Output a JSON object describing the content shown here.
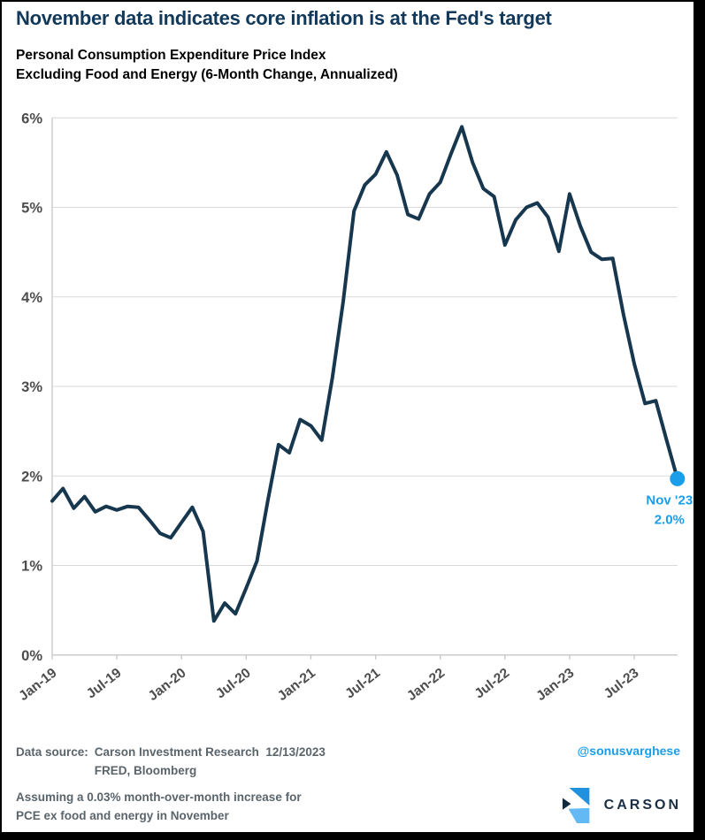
{
  "title": "November data indicates core inflation is at the Fed's target",
  "subtitle": {
    "line1": "Personal Consumption Expenditure Price Index",
    "line2": "Excluding Food and Energy (6-Month Change, Annualized)"
  },
  "chart_data": {
    "type": "line",
    "title": "Personal Consumption Expenditure Price Index Excluding Food and Energy (6-Month Change, Annualized)",
    "x": [
      "Jan-19",
      "Feb-19",
      "Mar-19",
      "Apr-19",
      "May-19",
      "Jun-19",
      "Jul-19",
      "Aug-19",
      "Sep-19",
      "Oct-19",
      "Nov-19",
      "Dec-19",
      "Jan-20",
      "Feb-20",
      "Mar-20",
      "Apr-20",
      "May-20",
      "Jun-20",
      "Jul-20",
      "Aug-20",
      "Sep-20",
      "Oct-20",
      "Nov-20",
      "Dec-20",
      "Jan-21",
      "Feb-21",
      "Mar-21",
      "Apr-21",
      "May-21",
      "Jun-21",
      "Jul-21",
      "Aug-21",
      "Sep-21",
      "Oct-21",
      "Nov-21",
      "Dec-21",
      "Jan-22",
      "Feb-22",
      "Mar-22",
      "Apr-22",
      "May-22",
      "Jun-22",
      "Jul-22",
      "Aug-22",
      "Sep-22",
      "Oct-22",
      "Nov-22",
      "Dec-22",
      "Jan-23",
      "Feb-23",
      "Mar-23",
      "Apr-23",
      "May-23",
      "Jun-23",
      "Jul-23",
      "Aug-23",
      "Sep-23",
      "Oct-23",
      "Nov-23"
    ],
    "values": [
      1.72,
      1.86,
      1.64,
      1.77,
      1.6,
      1.66,
      1.62,
      1.66,
      1.65,
      1.51,
      1.36,
      1.31,
      1.48,
      1.65,
      1.38,
      0.38,
      0.58,
      0.46,
      0.75,
      1.05,
      1.72,
      2.35,
      2.26,
      2.63,
      2.56,
      2.4,
      3.1,
      3.95,
      4.96,
      5.25,
      5.37,
      5.62,
      5.36,
      4.92,
      4.87,
      5.15,
      5.28,
      5.6,
      5.9,
      5.5,
      5.21,
      5.12,
      4.58,
      4.86,
      5.0,
      5.05,
      4.89,
      4.51,
      5.15,
      4.79,
      4.5,
      4.42,
      4.43,
      3.8,
      3.25,
      2.81,
      2.84,
      2.4,
      1.97
    ],
    "ylim": [
      0,
      6
    ],
    "ytick_labels": [
      "0%",
      "1%",
      "2%",
      "3%",
      "4%",
      "5%",
      "6%"
    ],
    "xtick_step": 6,
    "xtick_labels": [
      "Jan-19",
      "Jul-19",
      "Jan-20",
      "Jul-20",
      "Jan-21",
      "Jul-21",
      "Jan-22",
      "Jul-22",
      "Jan-23",
      "Jul-23"
    ],
    "grid": "horizontal",
    "legend": "none",
    "line_color": "#17374f",
    "endpoint": {
      "x": "Nov-23",
      "value": 1.97,
      "label_line1": "Nov '23",
      "label_line2": "2.0%",
      "color": "#1a9ee9"
    }
  },
  "footer": {
    "source_label": "Data source:",
    "source_line1": "Carson Investment Research  12/13/2023",
    "source_line2": "FRED, Bloomberg",
    "handle": "@sonusvarghese",
    "note_line1": "Assuming a 0.03% month-over-month increase for",
    "note_line2": "PCE ex food and energy in November",
    "brand_wordmark": "CARSON"
  },
  "colors": {
    "title_navy": "#12395a",
    "line_navy": "#17374f",
    "accent_blue": "#1a9ee9",
    "axis_gray": "#4d4d4d",
    "grid_gray": "#d9d9d9",
    "spine_gray": "#c6c6c6",
    "footer_gray": "#5a646b",
    "brand_navy": "#1a2e44",
    "logo_blue_top": "#2191dd",
    "logo_blue_bottom": "#63b9f3",
    "logo_navy": "#10293c"
  }
}
